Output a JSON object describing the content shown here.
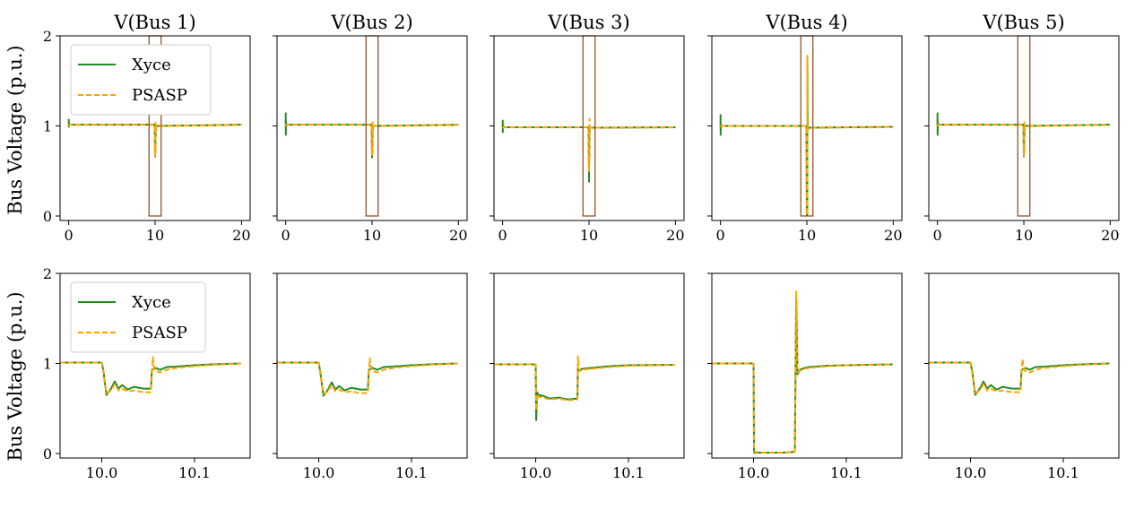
{
  "chart_data": {
    "type": "line",
    "ylabel": "Bus Voltage (p.u.)",
    "legend": {
      "placement": "upper-left",
      "entries": [
        {
          "name": "Xyce",
          "color": "#228b22",
          "style": "solid"
        },
        {
          "name": "PSASP",
          "color": "#ffa500",
          "style": "dashed"
        }
      ]
    },
    "rows": [
      {
        "view": "full",
        "xlim": [
          -1,
          21
        ],
        "ylim": [
          -0.05,
          2.0
        ],
        "xticks": [
          0,
          10,
          20
        ],
        "xtick_labels": [
          "0",
          "10",
          "20"
        ],
        "yticks": [
          0,
          1,
          2
        ],
        "ytick_labels": [
          "0",
          "1",
          "2"
        ],
        "zoom_box": {
          "x": [
            9.3,
            10.7
          ],
          "y": [
            0.0,
            2.0
          ],
          "color": "#8b4513"
        }
      },
      {
        "view": "zoom",
        "xlim": [
          9.955,
          10.16
        ],
        "ylim": [
          -0.05,
          2.0
        ],
        "xticks": [
          10.0,
          10.1
        ],
        "xtick_labels": [
          "10.0",
          "10.1"
        ],
        "yticks": [
          0,
          1,
          2
        ],
        "ytick_labels": [
          "0",
          "1",
          "2"
        ]
      }
    ],
    "panels": [
      {
        "title": "V(Bus 1)",
        "full": {
          "xyce": {
            "x": [
              0,
              0.01,
              0.02,
              0.04,
              0.08,
              0.15,
              0.3,
              5,
              9.95,
              10.0,
              10.01,
              10.02,
              10.05,
              10.06,
              10.1,
              10.15,
              20
            ],
            "y": [
              1.0,
              1.07,
              0.99,
              1.03,
              1.01,
              1.015,
              1.013,
              1.013,
              1.013,
              0.66,
              0.79,
              0.72,
              0.72,
              0.93,
              0.99,
              1.0,
              1.013
            ]
          },
          "psasp": {
            "x": [
              0,
              0.02,
              0.05,
              0.1,
              0.3,
              5,
              9.95,
              10.0,
              10.01,
              10.02,
              10.05,
              10.055,
              10.06,
              10.1,
              10.15,
              20
            ],
            "y": [
              1.0,
              1.01,
              1.005,
              1.012,
              1.013,
              1.013,
              1.013,
              0.67,
              0.77,
              0.7,
              0.7,
              1.04,
              0.92,
              0.98,
              1.0,
              1.013
            ]
          },
          "zoom": {
            "xyce": {
              "x": [
                9.955,
                10.0,
                10.002,
                10.005,
                10.01,
                10.014,
                10.018,
                10.022,
                10.028,
                10.035,
                10.045,
                10.053,
                10.054,
                10.058,
                10.063,
                10.07,
                10.08,
                10.1,
                10.12,
                10.15
              ],
              "y": [
                1.01,
                1.01,
                0.9,
                0.65,
                0.72,
                0.8,
                0.72,
                0.76,
                0.71,
                0.74,
                0.72,
                0.72,
                0.93,
                0.95,
                0.93,
                0.96,
                0.965,
                0.98,
                0.99,
                1.0
              ]
            },
            "psasp": {
              "x": [
                9.955,
                10.0,
                10.002,
                10.005,
                10.01,
                10.014,
                10.018,
                10.022,
                10.028,
                10.035,
                10.045,
                10.053,
                10.055,
                10.057,
                10.063,
                10.07,
                10.08,
                10.1,
                10.12,
                10.15
              ],
              "y": [
                1.01,
                1.01,
                0.88,
                0.67,
                0.7,
                0.77,
                0.7,
                0.72,
                0.69,
                0.7,
                0.68,
                0.68,
                1.07,
                0.92,
                0.9,
                0.93,
                0.95,
                0.97,
                0.985,
                1.0
              ]
            }
          }
        }
      },
      {
        "title": "V(Bus 2)",
        "full": {
          "xyce": {
            "x": [
              0,
              0.01,
              0.02,
              0.04,
              0.08,
              0.15,
              0.3,
              5,
              9.95,
              10.0,
              10.01,
              10.02,
              10.05,
              10.06,
              10.1,
              10.15,
              20
            ],
            "y": [
              1.0,
              1.14,
              0.9,
              1.04,
              1.0,
              1.015,
              1.013,
              1.013,
              1.013,
              0.65,
              0.77,
              0.72,
              0.71,
              0.93,
              0.99,
              1.0,
              1.013
            ]
          },
          "psasp": {
            "x": [
              0,
              0.02,
              0.05,
              0.1,
              0.3,
              5,
              9.95,
              10.0,
              10.01,
              10.02,
              10.05,
              10.055,
              10.06,
              10.1,
              10.15,
              20
            ],
            "y": [
              1.0,
              1.01,
              1.005,
              1.012,
              1.013,
              1.013,
              1.013,
              0.66,
              0.76,
              0.7,
              0.69,
              1.05,
              0.92,
              0.98,
              1.0,
              1.013
            ]
          },
          "zoom": {
            "xyce": {
              "x": [
                9.955,
                10.0,
                10.002,
                10.005,
                10.01,
                10.014,
                10.018,
                10.022,
                10.028,
                10.035,
                10.045,
                10.053,
                10.054,
                10.058,
                10.063,
                10.07,
                10.08,
                10.1,
                10.12,
                10.15
              ],
              "y": [
                1.01,
                1.01,
                0.88,
                0.64,
                0.71,
                0.79,
                0.71,
                0.75,
                0.7,
                0.73,
                0.71,
                0.71,
                0.93,
                0.95,
                0.93,
                0.96,
                0.965,
                0.98,
                0.99,
                1.0
              ]
            },
            "psasp": {
              "x": [
                9.955,
                10.0,
                10.002,
                10.005,
                10.01,
                10.014,
                10.018,
                10.022,
                10.028,
                10.035,
                10.045,
                10.053,
                10.055,
                10.057,
                10.063,
                10.07,
                10.08,
                10.1,
                10.12,
                10.15
              ],
              "y": [
                1.01,
                1.01,
                0.86,
                0.66,
                0.69,
                0.76,
                0.69,
                0.71,
                0.68,
                0.69,
                0.67,
                0.67,
                1.06,
                0.92,
                0.9,
                0.93,
                0.95,
                0.97,
                0.985,
                1.0
              ]
            }
          }
        }
      },
      {
        "title": "V(Bus 3)",
        "full": {
          "xyce": {
            "x": [
              0,
              0.01,
              0.02,
              0.04,
              0.08,
              0.15,
              0.3,
              5,
              9.95,
              10.0,
              10.01,
              10.02,
              10.05,
              10.06,
              10.1,
              10.15,
              20
            ],
            "y": [
              0.98,
              1.06,
              0.93,
              1.0,
              0.98,
              0.99,
              0.985,
              0.985,
              0.985,
              0.38,
              0.64,
              0.6,
              0.61,
              0.94,
              0.98,
              0.98,
              0.985
            ]
          },
          "psasp": {
            "x": [
              0,
              0.02,
              0.05,
              0.1,
              0.3,
              5,
              9.95,
              10.0,
              10.01,
              10.02,
              10.05,
              10.055,
              10.06,
              10.1,
              10.15,
              20
            ],
            "y": [
              0.98,
              0.985,
              0.98,
              0.985,
              0.985,
              0.985,
              0.985,
              0.5,
              0.63,
              0.6,
              0.6,
              1.08,
              0.94,
              0.97,
              0.98,
              0.985
            ]
          },
          "zoom": {
            "xyce": {
              "x": [
                9.955,
                10.0,
                10.0005,
                10.0015,
                10.003,
                10.008,
                10.015,
                10.025,
                10.035,
                10.045,
                10.0455,
                10.047,
                10.05,
                10.06,
                10.08,
                10.1,
                10.15
              ],
              "y": [
                0.99,
                0.99,
                0.37,
                0.68,
                0.65,
                0.64,
                0.61,
                0.62,
                0.6,
                0.61,
                0.95,
                0.92,
                0.94,
                0.95,
                0.97,
                0.98,
                0.985
              ]
            },
            "psasp": {
              "x": [
                9.955,
                10.0,
                10.0005,
                10.0015,
                10.003,
                10.008,
                10.015,
                10.025,
                10.035,
                10.045,
                10.0455,
                10.047,
                10.05,
                10.06,
                10.08,
                10.1,
                10.15
              ],
              "y": [
                0.99,
                0.99,
                0.48,
                0.66,
                0.63,
                0.62,
                0.6,
                0.61,
                0.59,
                0.6,
                1.08,
                0.91,
                0.93,
                0.94,
                0.96,
                0.975,
                0.985
              ]
            }
          }
        }
      },
      {
        "title": "V(Bus 4)",
        "full": {
          "xyce": {
            "x": [
              0,
              0.01,
              0.02,
              0.04,
              0.08,
              0.15,
              0.3,
              5,
              9.95,
              10.0,
              10.01,
              10.02,
              10.05,
              10.06,
              10.1,
              10.15,
              20
            ],
            "y": [
              1.0,
              1.12,
              0.9,
              1.02,
              0.99,
              1.0,
              1.0,
              1.0,
              1.0,
              0.01,
              0.01,
              0.01,
              0.02,
              1.75,
              0.95,
              0.98,
              0.99
            ]
          },
          "psasp": {
            "x": [
              0,
              0.02,
              0.05,
              0.1,
              0.3,
              5,
              9.95,
              10.0,
              10.01,
              10.02,
              10.05,
              10.055,
              10.06,
              10.1,
              10.15,
              20
            ],
            "y": [
              1.0,
              1.0,
              0.995,
              1.0,
              1.0,
              1.0,
              1.0,
              0.02,
              0.01,
              0.01,
              0.02,
              1.78,
              0.93,
              0.97,
              0.98,
              0.99
            ]
          },
          "zoom": {
            "xyce": {
              "x": [
                9.955,
                10.0,
                10.0005,
                10.01,
                10.02,
                10.03,
                10.04,
                10.0445,
                10.046,
                10.0475,
                10.05,
                10.055,
                10.06,
                10.08,
                10.1,
                10.15
              ],
              "y": [
                1.0,
                1.0,
                0.01,
                0.01,
                0.01,
                0.01,
                0.015,
                0.02,
                1.72,
                0.88,
                0.93,
                0.95,
                0.96,
                0.975,
                0.98,
                0.99
              ]
            },
            "psasp": {
              "x": [
                9.955,
                10.0,
                10.0005,
                10.01,
                10.02,
                10.03,
                10.04,
                10.0445,
                10.046,
                10.0475,
                10.05,
                10.055,
                10.06,
                10.08,
                10.1,
                10.15
              ],
              "y": [
                1.0,
                1.0,
                0.02,
                0.01,
                0.01,
                0.01,
                0.015,
                0.02,
                1.8,
                0.9,
                0.92,
                0.94,
                0.95,
                0.97,
                0.98,
                0.99
              ]
            }
          }
        }
      },
      {
        "title": "V(Bus 5)",
        "full": {
          "xyce": {
            "x": [
              0,
              0.01,
              0.02,
              0.04,
              0.08,
              0.15,
              0.3,
              5,
              9.95,
              10.0,
              10.01,
              10.02,
              10.05,
              10.06,
              10.1,
              10.15,
              20
            ],
            "y": [
              1.0,
              1.14,
              0.9,
              1.04,
              1.0,
              1.015,
              1.013,
              1.013,
              1.013,
              0.66,
              0.79,
              0.72,
              0.71,
              0.93,
              0.99,
              1.0,
              1.013
            ]
          },
          "psasp": {
            "x": [
              0,
              0.02,
              0.05,
              0.1,
              0.3,
              5,
              9.95,
              10.0,
              10.01,
              10.02,
              10.05,
              10.055,
              10.06,
              10.1,
              10.15,
              20
            ],
            "y": [
              1.0,
              1.01,
              1.005,
              1.012,
              1.013,
              1.013,
              1.013,
              0.67,
              0.76,
              0.7,
              0.69,
              1.04,
              0.92,
              0.98,
              1.0,
              1.013
            ]
          },
          "zoom": {
            "xyce": {
              "x": [
                9.955,
                10.0,
                10.002,
                10.005,
                10.01,
                10.014,
                10.018,
                10.022,
                10.028,
                10.035,
                10.045,
                10.054,
                10.055,
                10.059,
                10.064,
                10.07,
                10.08,
                10.1,
                10.12,
                10.15
              ],
              "y": [
                1.01,
                1.01,
                0.9,
                0.65,
                0.72,
                0.8,
                0.72,
                0.76,
                0.71,
                0.74,
                0.72,
                0.72,
                0.93,
                0.95,
                0.93,
                0.96,
                0.965,
                0.98,
                0.99,
                1.0
              ]
            },
            "psasp": {
              "x": [
                9.955,
                10.0,
                10.002,
                10.005,
                10.01,
                10.014,
                10.018,
                10.022,
                10.028,
                10.035,
                10.045,
                10.054,
                10.056,
                10.058,
                10.064,
                10.07,
                10.08,
                10.1,
                10.12,
                10.15
              ],
              "y": [
                1.01,
                1.01,
                0.88,
                0.67,
                0.7,
                0.77,
                0.7,
                0.72,
                0.69,
                0.7,
                0.68,
                0.68,
                1.05,
                0.92,
                0.9,
                0.93,
                0.95,
                0.97,
                0.985,
                1.0
              ]
            }
          }
        }
      }
    ]
  }
}
